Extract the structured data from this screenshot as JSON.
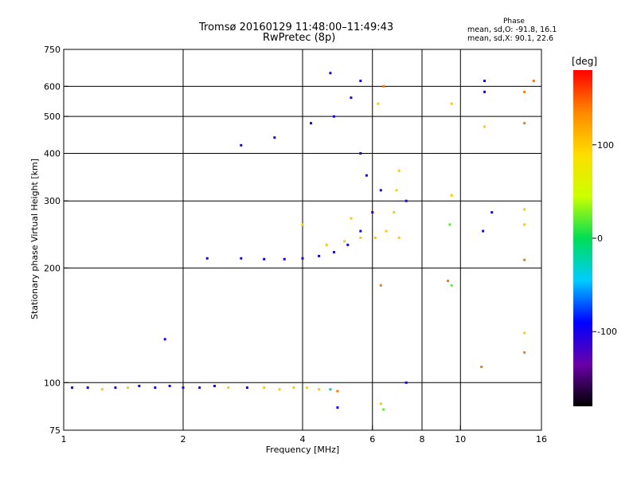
{
  "title": "Tromsø 20160129 11:48:00–11:49:43",
  "subtitle": "RwPretec (8p)",
  "phase_legend": {
    "title": "Phase",
    "o_mode": "mean, sd,O: -91.8, 16.1",
    "x_mode": "mean, sd,X:  90.1, 22.6"
  },
  "colorbar": {
    "label": "deg",
    "ticks": [
      "100",
      "0",
      "-100"
    ],
    "tick_values": [
      100,
      0,
      -100
    ],
    "range": [
      -180,
      180
    ],
    "colors": [
      "#000000",
      "#6a00a8",
      "#0000ff",
      "#00ccff",
      "#00dd55",
      "#ccff00",
      "#ffdd00",
      "#ff8800",
      "#ff0000"
    ]
  },
  "chart_data": {
    "type": "scatter",
    "xlabel": "Frequency [MHz]",
    "ylabel": "Stationary phase Virtual Height [km]",
    "xscale": "log",
    "yscale": "log",
    "xlim": [
      1,
      16
    ],
    "ylim": [
      75,
      750
    ],
    "xticks": [
      1,
      2,
      4,
      6,
      8,
      10,
      16
    ],
    "xtick_labels": [
      "1",
      "2",
      "4",
      "6",
      "8",
      "10",
      "16"
    ],
    "yticks": [
      75,
      100,
      200,
      300,
      400,
      500,
      600,
      750
    ],
    "ytick_labels": [
      "75",
      "100",
      "200",
      "300",
      "400",
      "500",
      "600",
      "750"
    ],
    "x_gridlines": [
      2,
      4,
      6,
      8,
      10
    ],
    "y_gridlines": [
      100,
      200,
      300,
      400,
      500,
      600
    ],
    "grid": true,
    "color_variable": "phase (deg)",
    "series": [
      {
        "points": [
          [
            1.05,
            97,
            -100
          ],
          [
            1.15,
            97,
            -100
          ],
          [
            1.25,
            96,
            100
          ],
          [
            1.35,
            97,
            -100
          ],
          [
            1.45,
            97,
            100
          ],
          [
            1.55,
            98,
            -100
          ],
          [
            1.7,
            97,
            -100
          ],
          [
            1.85,
            98,
            -100
          ],
          [
            2.0,
            97,
            -100
          ],
          [
            2.2,
            97,
            -100
          ],
          [
            2.4,
            98,
            -100
          ],
          [
            2.6,
            97,
            100
          ],
          [
            2.9,
            97,
            -100
          ],
          [
            3.2,
            97,
            100
          ],
          [
            3.5,
            96,
            100
          ],
          [
            3.8,
            97,
            100
          ],
          [
            4.1,
            97,
            100
          ],
          [
            4.4,
            96,
            100
          ],
          [
            4.7,
            96,
            -20
          ],
          [
            1.8,
            130,
            -100
          ],
          [
            2.3,
            212,
            -100
          ],
          [
            2.8,
            212,
            -100
          ],
          [
            3.2,
            211,
            -100
          ],
          [
            3.6,
            211,
            -100
          ],
          [
            4.0,
            212,
            -100
          ],
          [
            4.4,
            215,
            -100
          ],
          [
            4.8,
            220,
            -100
          ],
          [
            5.2,
            230,
            -100
          ],
          [
            5.6,
            250,
            -100
          ],
          [
            6.0,
            280,
            -100
          ],
          [
            6.3,
            320,
            -100
          ],
          [
            4.2,
            480,
            -100
          ],
          [
            4.8,
            500,
            -100
          ],
          [
            5.3,
            560,
            -100
          ],
          [
            5.6,
            620,
            -100
          ],
          [
            4.7,
            650,
            -100
          ],
          [
            5.6,
            400,
            -100
          ],
          [
            5.8,
            350,
            -100
          ],
          [
            4.6,
            230,
            100
          ],
          [
            5.1,
            235,
            100
          ],
          [
            5.6,
            240,
            100
          ],
          [
            6.1,
            240,
            100
          ],
          [
            6.5,
            250,
            100
          ],
          [
            6.8,
            280,
            100
          ],
          [
            6.9,
            320,
            100
          ],
          [
            7.0,
            360,
            100
          ],
          [
            5.3,
            270,
            100
          ],
          [
            4.0,
            260,
            100
          ],
          [
            2.8,
            420,
            -100
          ],
          [
            3.4,
            440,
            -100
          ],
          [
            6.2,
            540,
            100
          ],
          [
            6.4,
            600,
            140
          ],
          [
            6.3,
            180,
            140
          ],
          [
            9.5,
            540,
            100
          ],
          [
            9.5,
            310,
            100
          ],
          [
            9.4,
            260,
            20
          ],
          [
            9.3,
            185,
            140
          ],
          [
            9.5,
            180,
            20
          ],
          [
            11.5,
            620,
            -100
          ],
          [
            11.5,
            580,
            -100
          ],
          [
            11.5,
            470,
            100
          ],
          [
            12.0,
            280,
            -100
          ],
          [
            11.4,
            250,
            -100
          ],
          [
            14.5,
            580,
            140
          ],
          [
            14.5,
            480,
            140
          ],
          [
            14.5,
            285,
            100
          ],
          [
            14.5,
            260,
            100
          ],
          [
            14.5,
            210,
            140
          ],
          [
            14.5,
            135,
            100
          ],
          [
            14.5,
            120,
            140
          ],
          [
            11.3,
            110,
            140
          ],
          [
            15.3,
            620,
            140
          ],
          [
            7.0,
            240,
            100
          ],
          [
            7.3,
            300,
            -100
          ],
          [
            6.3,
            88,
            100
          ],
          [
            6.4,
            85,
            20
          ],
          [
            7.3,
            100,
            -100
          ],
          [
            4.9,
            86,
            -100
          ],
          [
            4.9,
            95,
            140
          ]
        ]
      }
    ]
  }
}
